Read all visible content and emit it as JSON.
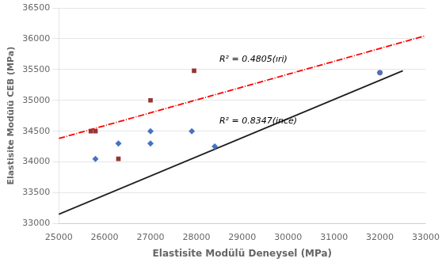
{
  "chart_data": {
    "type": "scatter",
    "xlabel": "Elastisite Modülü Deneysel (MPa)",
    "ylabel": "Elastisite Modülü CEB (MPa)",
    "xlim": [
      25000,
      33000
    ],
    "ylim": [
      33000,
      36500
    ],
    "xticks": [
      25000,
      26000,
      27000,
      28000,
      29000,
      30000,
      31000,
      32000,
      33000
    ],
    "yticks": [
      33000,
      33500,
      34000,
      34500,
      35000,
      35500,
      36000,
      36500
    ],
    "grid": "y",
    "annotations": [
      "R² = 0.4805(ıri)",
      "R² = 0.8347(ince)"
    ],
    "series": [
      {
        "type": "line",
        "color": "#1F1F1F",
        "line_style": "solid",
        "x": [
          25000,
          32500
        ],
        "values": [
          33150,
          35480
        ]
      },
      {
        "type": "line",
        "color": "#FF0000",
        "line_style": "dashdot",
        "x": [
          25000,
          33000
        ],
        "values": [
          34380,
          36050
        ]
      },
      {
        "type": "scatter",
        "color": "#4472C4",
        "marker": "diamond",
        "x": [
          25800,
          26300,
          27000,
          27000,
          27900,
          28400,
          32000
        ],
        "values": [
          34050,
          34300,
          34300,
          34500,
          34500,
          34250,
          35450
        ]
      },
      {
        "type": "scatter",
        "color": "#943634",
        "marker": "square",
        "x": [
          25700,
          25800,
          26300,
          27000,
          27950,
          32000
        ],
        "values": [
          34500,
          34500,
          34050,
          35000,
          35480,
          35450
        ]
      }
    ]
  }
}
